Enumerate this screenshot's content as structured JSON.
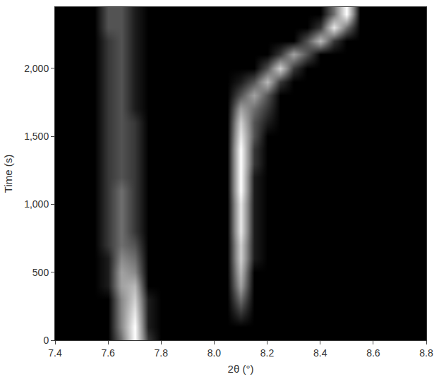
{
  "chart_data": {
    "type": "heatmap",
    "x_label": "2θ (°)",
    "y_label": "Time (s)",
    "x": [
      7.4,
      7.45,
      7.5,
      7.55,
      7.6,
      7.65,
      7.7,
      7.75,
      7.8,
      7.85,
      7.9,
      7.95,
      8.0,
      8.05,
      8.1,
      8.15,
      8.2,
      8.25,
      8.3,
      8.35,
      8.4,
      8.45,
      8.5,
      8.55,
      8.6,
      8.65,
      8.7,
      8.75,
      8.8
    ],
    "y": [
      0,
      100,
      200,
      300,
      400,
      500,
      600,
      700,
      800,
      900,
      1000,
      1100,
      1200,
      1300,
      1400,
      1500,
      1600,
      1700,
      1800,
      1900,
      2000,
      2100,
      2200,
      2300,
      2400
    ],
    "z": [
      [
        0,
        0,
        0,
        0,
        0,
        4,
        10,
        2,
        0,
        0,
        0,
        0,
        0,
        0,
        0,
        0,
        0,
        0,
        0,
        0,
        0,
        0,
        0,
        0,
        0,
        0,
        0,
        0,
        0
      ],
      [
        0,
        0,
        0,
        0,
        0,
        5,
        10,
        1,
        0,
        0,
        0,
        0,
        0,
        0,
        0,
        0,
        0,
        0,
        0,
        0,
        0,
        0,
        0,
        0,
        0,
        0,
        0,
        0,
        0
      ],
      [
        0,
        0,
        0,
        0,
        0,
        5,
        9,
        1,
        0,
        0,
        0,
        0,
        0,
        0,
        2,
        0,
        0,
        0,
        0,
        0,
        0,
        0,
        0,
        0,
        0,
        0,
        0,
        0,
        0
      ],
      [
        0,
        0,
        0,
        0,
        0,
        5,
        8,
        1,
        0,
        0,
        0,
        0,
        0,
        0,
        4,
        0,
        0,
        0,
        0,
        0,
        0,
        0,
        0,
        0,
        0,
        0,
        0,
        0,
        0
      ],
      [
        0,
        0,
        0,
        0,
        1,
        6,
        7,
        0,
        0,
        0,
        0,
        0,
        0,
        0,
        6,
        0,
        0,
        0,
        0,
        0,
        0,
        0,
        0,
        0,
        0,
        0,
        0,
        0,
        0
      ],
      [
        0,
        0,
        0,
        0,
        1,
        6,
        5,
        0,
        0,
        0,
        0,
        0,
        0,
        0,
        7,
        0,
        0,
        0,
        0,
        0,
        0,
        0,
        0,
        0,
        0,
        0,
        0,
        0,
        0
      ],
      [
        0,
        0,
        0,
        0,
        1,
        5,
        4,
        0,
        0,
        0,
        0,
        0,
        0,
        0,
        8,
        1,
        0,
        0,
        0,
        0,
        0,
        0,
        0,
        0,
        0,
        0,
        0,
        0,
        0
      ],
      [
        0,
        0,
        0,
        0,
        2,
        4,
        3,
        0,
        0,
        0,
        0,
        0,
        0,
        0,
        8,
        1,
        0,
        0,
        0,
        0,
        0,
        0,
        0,
        0,
        0,
        0,
        0,
        0,
        0
      ],
      [
        0,
        0,
        0,
        0,
        2,
        4,
        2,
        0,
        0,
        0,
        0,
        0,
        0,
        0,
        9,
        1,
        0,
        0,
        0,
        0,
        0,
        0,
        0,
        0,
        0,
        0,
        0,
        0,
        0
      ],
      [
        0,
        0,
        0,
        0,
        2,
        4,
        2,
        0,
        0,
        0,
        0,
        0,
        0,
        0,
        9,
        1,
        0,
        0,
        0,
        0,
        0,
        0,
        0,
        0,
        0,
        0,
        0,
        0,
        0
      ],
      [
        0,
        0,
        0,
        0,
        2,
        4,
        2,
        0,
        0,
        0,
        0,
        0,
        0,
        0,
        9,
        1,
        0,
        0,
        0,
        0,
        0,
        0,
        0,
        0,
        0,
        0,
        0,
        0,
        0
      ],
      [
        0,
        0,
        0,
        0,
        2,
        4,
        2,
        0,
        0,
        0,
        0,
        0,
        0,
        0,
        10,
        1,
        0,
        0,
        0,
        0,
        0,
        0,
        0,
        0,
        0,
        0,
        0,
        0,
        0
      ],
      [
        0,
        0,
        0,
        0,
        2,
        3,
        2,
        0,
        0,
        0,
        0,
        0,
        0,
        0,
        10,
        1,
        0,
        0,
        0,
        0,
        0,
        0,
        0,
        0,
        0,
        0,
        0,
        0,
        0
      ],
      [
        0,
        0,
        0,
        0,
        2,
        3,
        2,
        0,
        0,
        0,
        0,
        0,
        0,
        0,
        10,
        2,
        0,
        0,
        0,
        0,
        0,
        0,
        0,
        0,
        0,
        0,
        0,
        0,
        0
      ],
      [
        0,
        0,
        0,
        0,
        2,
        3,
        2,
        0,
        0,
        0,
        0,
        0,
        0,
        0,
        10,
        2,
        0,
        0,
        0,
        0,
        0,
        0,
        0,
        0,
        0,
        0,
        0,
        0,
        0
      ],
      [
        0,
        0,
        0,
        0,
        2,
        3,
        2,
        0,
        0,
        0,
        0,
        0,
        0,
        0,
        9,
        3,
        0,
        0,
        0,
        0,
        0,
        0,
        0,
        0,
        0,
        0,
        0,
        0,
        0
      ],
      [
        0,
        0,
        0,
        0,
        2,
        3,
        2,
        0,
        0,
        0,
        0,
        0,
        0,
        0,
        8,
        3,
        1,
        0,
        0,
        0,
        0,
        0,
        0,
        0,
        0,
        0,
        0,
        0,
        0
      ],
      [
        0,
        0,
        0,
        0,
        2,
        3,
        1,
        0,
        0,
        0,
        0,
        0,
        0,
        0,
        6,
        4,
        2,
        0,
        0,
        0,
        0,
        0,
        0,
        0,
        0,
        0,
        0,
        0,
        0
      ],
      [
        0,
        0,
        0,
        0,
        2,
        3,
        1,
        0,
        0,
        0,
        0,
        0,
        0,
        0,
        3,
        6,
        3,
        0,
        0,
        0,
        0,
        0,
        0,
        0,
        0,
        0,
        0,
        0,
        0
      ],
      [
        0,
        0,
        0,
        0,
        2,
        3,
        1,
        0,
        0,
        0,
        0,
        0,
        0,
        0,
        1,
        3,
        7,
        2,
        0,
        0,
        0,
        0,
        0,
        0,
        0,
        0,
        0,
        0,
        0
      ],
      [
        0,
        0,
        0,
        0,
        2,
        3,
        1,
        0,
        0,
        0,
        0,
        0,
        0,
        0,
        0,
        0,
        3,
        8,
        2,
        0,
        0,
        0,
        0,
        0,
        0,
        0,
        0,
        0,
        0
      ],
      [
        0,
        0,
        0,
        0,
        2,
        3,
        1,
        0,
        0,
        0,
        0,
        0,
        0,
        0,
        0,
        0,
        0,
        2,
        6,
        3,
        0,
        0,
        0,
        0,
        0,
        0,
        0,
        0,
        0
      ],
      [
        0,
        0,
        0,
        0,
        2,
        3,
        1,
        0,
        0,
        0,
        0,
        0,
        0,
        0,
        0,
        0,
        0,
        0,
        0,
        3,
        7,
        2,
        0,
        0,
        0,
        0,
        0,
        0,
        0
      ],
      [
        0,
        0,
        0,
        0,
        3,
        3,
        1,
        0,
        0,
        0,
        0,
        0,
        0,
        0,
        0,
        0,
        0,
        0,
        0,
        0,
        2,
        9,
        4,
        0,
        0,
        0,
        0,
        0,
        0
      ],
      [
        0,
        0,
        0,
        0,
        3,
        3,
        1,
        0,
        0,
        0,
        0,
        0,
        0,
        0,
        0,
        0,
        0,
        0,
        0,
        0,
        0,
        4,
        10,
        0,
        0,
        0,
        0,
        0,
        0
      ]
    ],
    "xlim": [
      7.4,
      8.8
    ],
    "xticks": [
      7.4,
      7.6,
      7.8,
      {
        "value": 8.0,
        "label": "8.0"
      },
      8.2,
      8.4,
      8.6,
      8.8
    ],
    "ylim": [
      0,
      2450
    ],
    "yticks": [
      0,
      500,
      {
        "value": 1000,
        "label": "1,000"
      },
      {
        "value": 1500,
        "label": "1,500"
      },
      {
        "value": 2000,
        "label": "2,000"
      }
    ]
  }
}
